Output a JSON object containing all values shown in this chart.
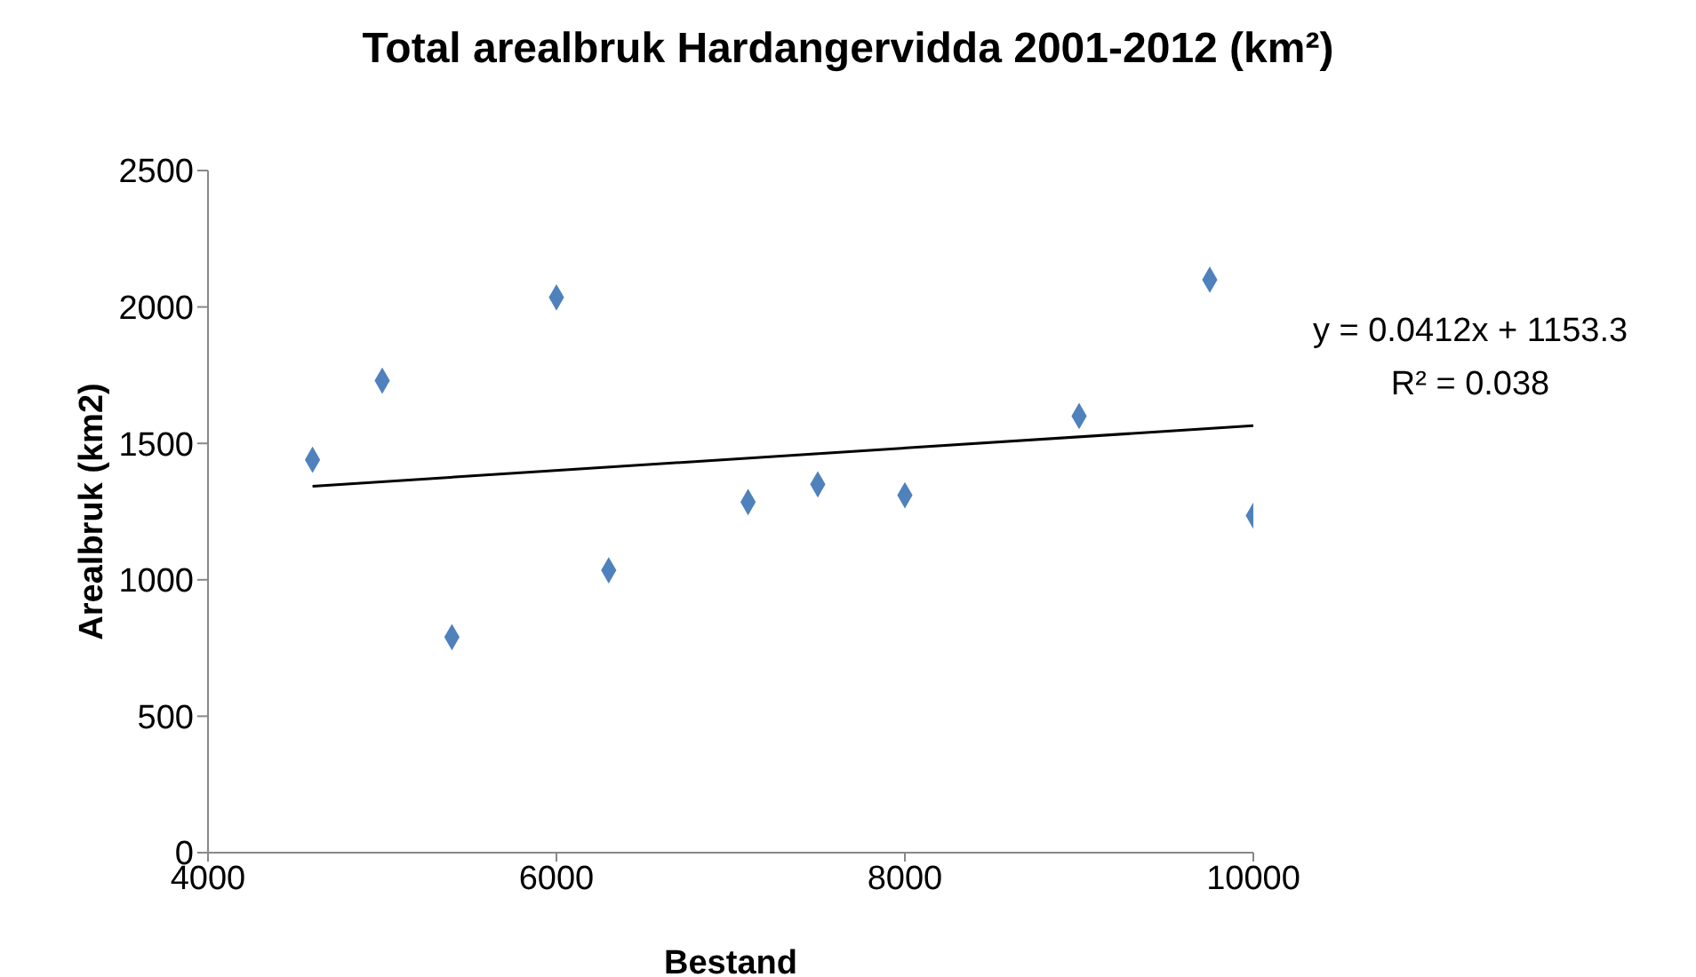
{
  "chart_data": {
    "type": "scatter",
    "title": "Total arealbruk Hardangervidda 2001-2012 (km²)",
    "xlabel": "Bestand",
    "ylabel": "Arealbruk (km2)",
    "xlim": [
      4000,
      10000
    ],
    "xticks": [
      4000,
      6000,
      8000,
      10000
    ],
    "ylim": [
      0,
      2500
    ],
    "yticks": [
      0,
      500,
      1000,
      1500,
      2000,
      2500
    ],
    "grid": false,
    "legend": false,
    "series": [
      {
        "type": "scatter",
        "color": "#4f81bd",
        "marker": "diamond",
        "x": [
          4600,
          5000,
          5400,
          6000,
          6300,
          7100,
          7500,
          8000,
          9000,
          9750,
          10000
        ],
        "values": [
          1440,
          1730,
          790,
          2035,
          1035,
          1285,
          1350,
          1310,
          1600,
          2100,
          1235
        ]
      },
      {
        "type": "line",
        "marker": "none",
        "color": "#000000",
        "x": [
          4600,
          10000
        ],
        "values": [
          1343,
          1565
        ]
      }
    ],
    "annotations": [
      "y = 0.0412x + 1153.3",
      "R² = 0.038"
    ]
  }
}
